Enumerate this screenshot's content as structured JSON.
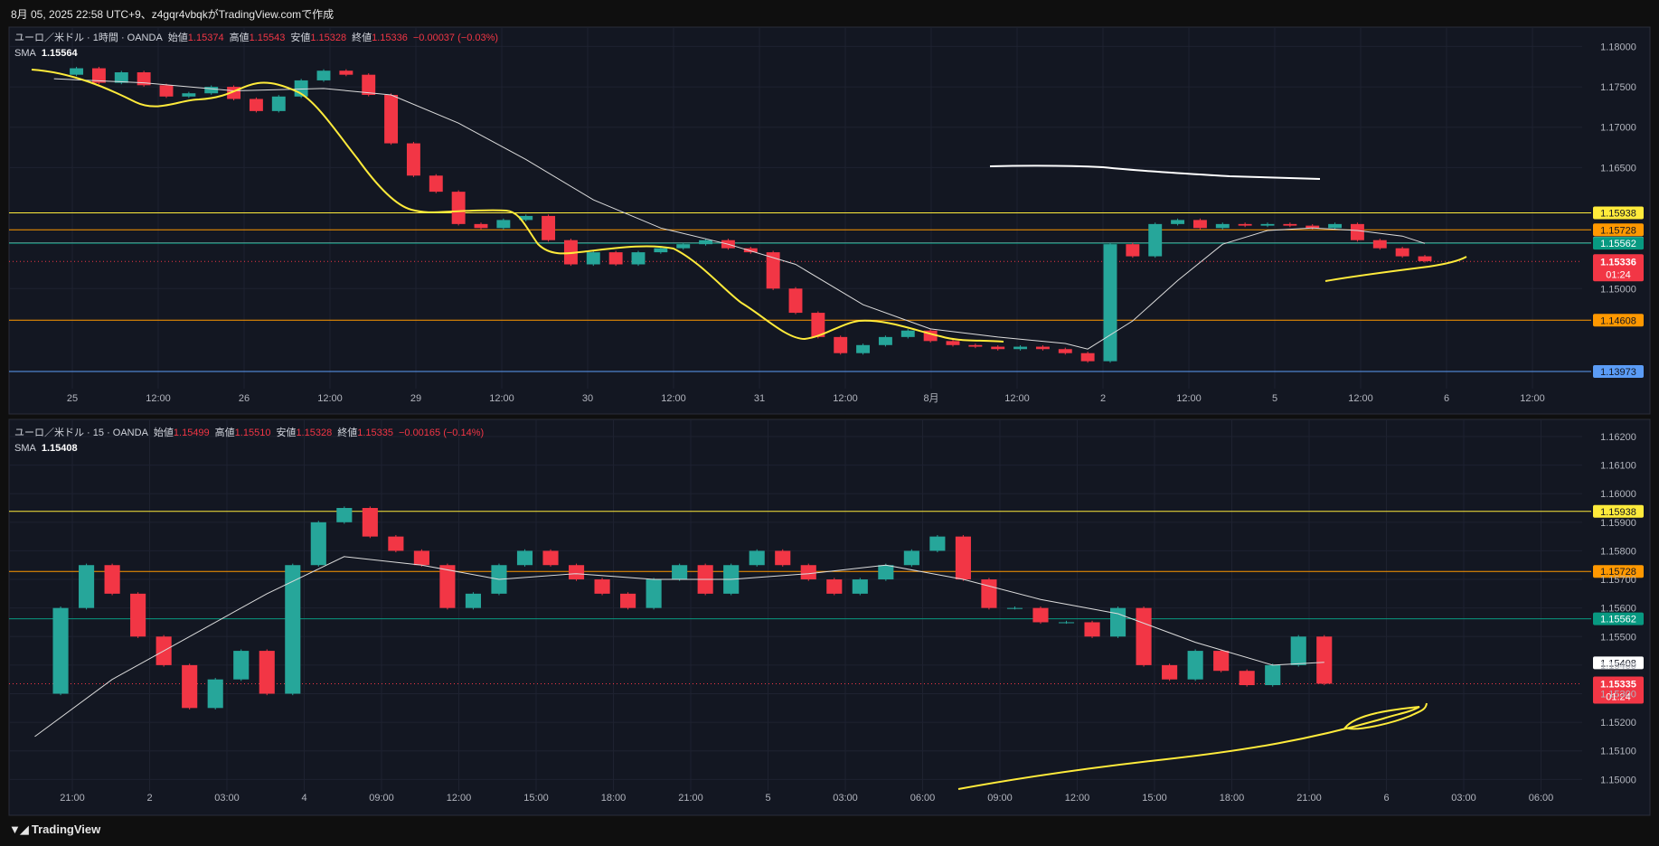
{
  "header": {
    "caption": "8月 05, 2025 22:58 UTC+9、z4gqr4vbqkがTradingView.comで作成"
  },
  "brand": {
    "name": "TradingView"
  },
  "colors": {
    "up": "#26a69a",
    "down": "#f23645",
    "sma": "#dcdcdc",
    "drawing": "#ffeb3b",
    "background": "#131722",
    "grid": "#1e2230",
    "axis_text": "#b2b5be"
  },
  "chart_data": [
    {
      "type": "candlestick",
      "legend": {
        "symbol": "ユーロ／米ドル · 1時間 · OANDA",
        "open_label": "始値",
        "open": "1.15374",
        "high_label": "高値",
        "high": "1.15543",
        "low_label": "安値",
        "low": "1.15328",
        "close_label": "終値",
        "close": "1.15336",
        "change": "−0.00037 (−0.03%)",
        "sma_label": "SMA",
        "sma_value": "1.15564"
      },
      "ylim": [
        1.1376,
        1.1824
      ],
      "y_ticks": [
        "1.18000",
        "1.17500",
        "1.17000",
        "1.16500",
        "1.15000"
      ],
      "x_ticks": [
        "25",
        "12:00",
        "26",
        "12:00",
        "29",
        "12:00",
        "30",
        "12:00",
        "31",
        "12:00",
        "8月",
        "12:00",
        "2",
        "12:00",
        "5",
        "12:00",
        "6",
        "12:00"
      ],
      "horizontal_lines": [
        {
          "price": 1.15938,
          "label": "1.15938",
          "color": "#ffeb3b"
        },
        {
          "price": 1.15728,
          "label": "1.15728",
          "color": "#ff9800"
        },
        {
          "price": 1.15564,
          "label": "1.15564",
          "color": "#ffffff"
        },
        {
          "price": 1.15562,
          "label": "1.15562",
          "color": "#089981"
        },
        {
          "price": 1.14608,
          "label": "1.14608",
          "color": "#ff9800"
        },
        {
          "price": 1.13973,
          "label": "1.13973",
          "color": "#5b9cf6"
        }
      ],
      "last_price": {
        "price": 1.15336,
        "label": "1.15336",
        "countdown": "01:24"
      },
      "price_path": [
        [
          0,
          1.1765
        ],
        [
          1,
          1.1773
        ],
        [
          2,
          1.1755
        ],
        [
          3,
          1.1768
        ],
        [
          4,
          1.1752
        ],
        [
          5,
          1.1738
        ],
        [
          6,
          1.1742
        ],
        [
          7,
          1.175
        ],
        [
          8,
          1.1735
        ],
        [
          9,
          1.172
        ],
        [
          10,
          1.1738
        ],
        [
          11,
          1.1758
        ],
        [
          12,
          1.177
        ],
        [
          13,
          1.1765
        ],
        [
          14,
          1.174
        ],
        [
          15,
          1.168
        ],
        [
          16,
          1.164
        ],
        [
          17,
          1.162
        ],
        [
          18,
          1.158
        ],
        [
          19,
          1.1575
        ],
        [
          20,
          1.1585
        ],
        [
          21,
          1.159
        ],
        [
          22,
          1.156
        ],
        [
          23,
          1.153
        ],
        [
          24,
          1.1545
        ],
        [
          25,
          1.153
        ],
        [
          26,
          1.1545
        ],
        [
          27,
          1.155
        ],
        [
          28,
          1.1555
        ],
        [
          29,
          1.156
        ],
        [
          30,
          1.155
        ],
        [
          31,
          1.1545
        ],
        [
          32,
          1.15
        ],
        [
          33,
          1.147
        ],
        [
          34,
          1.144
        ],
        [
          35,
          1.142
        ],
        [
          36,
          1.143
        ],
        [
          37,
          1.144
        ],
        [
          38,
          1.1448
        ],
        [
          39,
          1.1435
        ],
        [
          40,
          1.143
        ],
        [
          41,
          1.1428
        ],
        [
          42,
          1.1425
        ],
        [
          43,
          1.1428
        ],
        [
          44,
          1.1425
        ],
        [
          45,
          1.142
        ],
        [
          46,
          1.141
        ],
        [
          47,
          1.1555
        ],
        [
          48,
          1.154
        ],
        [
          49,
          1.158
        ],
        [
          50,
          1.1585
        ],
        [
          51,
          1.1575
        ],
        [
          52,
          1.158
        ],
        [
          53,
          1.1578
        ],
        [
          54,
          1.158
        ],
        [
          55,
          1.1578
        ],
        [
          56,
          1.1575
        ],
        [
          57,
          1.158
        ],
        [
          58,
          1.156
        ],
        [
          59,
          1.155
        ],
        [
          60,
          1.154
        ],
        [
          61,
          1.1534
        ]
      ],
      "sma_path": [
        [
          0,
          1.176
        ],
        [
          4,
          1.1755
        ],
        [
          8,
          1.1745
        ],
        [
          12,
          1.1748
        ],
        [
          15,
          1.174
        ],
        [
          18,
          1.1705
        ],
        [
          21,
          1.166
        ],
        [
          24,
          1.161
        ],
        [
          27,
          1.1575
        ],
        [
          30,
          1.1555
        ],
        [
          33,
          1.153
        ],
        [
          36,
          1.148
        ],
        [
          39,
          1.145
        ],
        [
          42,
          1.144
        ],
        [
          45,
          1.1432
        ],
        [
          46,
          1.1425
        ],
        [
          48,
          1.146
        ],
        [
          50,
          1.151
        ],
        [
          52,
          1.1555
        ],
        [
          54,
          1.1572
        ],
        [
          56,
          1.1575
        ],
        [
          58,
          1.1572
        ],
        [
          60,
          1.1565
        ],
        [
          61,
          1.1556
        ]
      ],
      "x_range": [
        -2,
        68
      ]
    },
    {
      "type": "candlestick",
      "legend": {
        "symbol": "ユーロ／米ドル · 15 · OANDA",
        "open_label": "始値",
        "open": "1.15499",
        "high_label": "高値",
        "high": "1.15510",
        "low_label": "安値",
        "low": "1.15328",
        "close_label": "終値",
        "close": "1.15335",
        "change": "−0.00165 (−0.14%)",
        "sma_label": "SMA",
        "sma_value": "1.15408"
      },
      "ylim": [
        1.1496,
        1.1626
      ],
      "y_ticks": [
        "1.16200",
        "1.16100",
        "1.16000",
        "1.15900",
        "1.15800",
        "1.15700",
        "1.15600",
        "1.15500",
        "1.15400",
        "1.15300",
        "1.15200",
        "1.15100",
        "1.15000"
      ],
      "x_ticks": [
        "21:00",
        "2",
        "03:00",
        "4",
        "09:00",
        "12:00",
        "15:00",
        "18:00",
        "21:00",
        "5",
        "03:00",
        "06:00",
        "09:00",
        "12:00",
        "15:00",
        "18:00",
        "21:00",
        "6",
        "03:00",
        "06:00"
      ],
      "horizontal_lines": [
        {
          "price": 1.15938,
          "label": "1.15938",
          "color": "#ffeb3b"
        },
        {
          "price": 1.15728,
          "label": "1.15728",
          "color": "#ff9800"
        },
        {
          "price": 1.15562,
          "label": "1.15562",
          "color": "#089981"
        }
      ],
      "sma_label_price": {
        "price": 1.15408,
        "label": "1.15408"
      },
      "last_price": {
        "price": 1.15335,
        "label": "1.15335",
        "countdown": "01:24"
      },
      "price_path": [
        [
          0,
          1.153
        ],
        [
          1,
          1.156
        ],
        [
          2,
          1.1575
        ],
        [
          3,
          1.1565
        ],
        [
          4,
          1.155
        ],
        [
          5,
          1.154
        ],
        [
          6,
          1.1525
        ],
        [
          7,
          1.1535
        ],
        [
          8,
          1.1545
        ],
        [
          9,
          1.153
        ],
        [
          10,
          1.1575
        ],
        [
          11,
          1.159
        ],
        [
          12,
          1.1595
        ],
        [
          13,
          1.1585
        ],
        [
          14,
          1.158
        ],
        [
          15,
          1.1575
        ],
        [
          16,
          1.156
        ],
        [
          17,
          1.1565
        ],
        [
          18,
          1.1575
        ],
        [
          19,
          1.158
        ],
        [
          20,
          1.1575
        ],
        [
          21,
          1.157
        ],
        [
          22,
          1.1565
        ],
        [
          23,
          1.156
        ],
        [
          24,
          1.157
        ],
        [
          25,
          1.1575
        ],
        [
          26,
          1.1565
        ],
        [
          27,
          1.1575
        ],
        [
          28,
          1.158
        ],
        [
          29,
          1.1575
        ],
        [
          30,
          1.157
        ],
        [
          31,
          1.1565
        ],
        [
          32,
          1.157
        ],
        [
          33,
          1.1575
        ],
        [
          34,
          1.158
        ],
        [
          35,
          1.1585
        ],
        [
          36,
          1.157
        ],
        [
          37,
          1.156
        ],
        [
          38,
          1.156
        ],
        [
          39,
          1.1555
        ],
        [
          40,
          1.1555
        ],
        [
          41,
          1.155
        ],
        [
          42,
          1.156
        ],
        [
          43,
          1.154
        ],
        [
          44,
          1.1535
        ],
        [
          45,
          1.1545
        ],
        [
          46,
          1.1538
        ],
        [
          47,
          1.1533
        ],
        [
          48,
          1.154
        ],
        [
          49,
          1.155
        ],
        [
          50,
          1.15335
        ]
      ],
      "sma_path": [
        [
          0,
          1.1515
        ],
        [
          3,
          1.1535
        ],
        [
          6,
          1.155
        ],
        [
          9,
          1.1565
        ],
        [
          12,
          1.1578
        ],
        [
          15,
          1.1575
        ],
        [
          18,
          1.157
        ],
        [
          21,
          1.1572
        ],
        [
          24,
          1.157
        ],
        [
          27,
          1.157
        ],
        [
          30,
          1.1572
        ],
        [
          33,
          1.1575
        ],
        [
          36,
          1.157
        ],
        [
          39,
          1.1563
        ],
        [
          42,
          1.1558
        ],
        [
          45,
          1.1548
        ],
        [
          48,
          1.154
        ],
        [
          50,
          1.1541
        ]
      ],
      "x_range": [
        -1,
        60
      ]
    }
  ]
}
